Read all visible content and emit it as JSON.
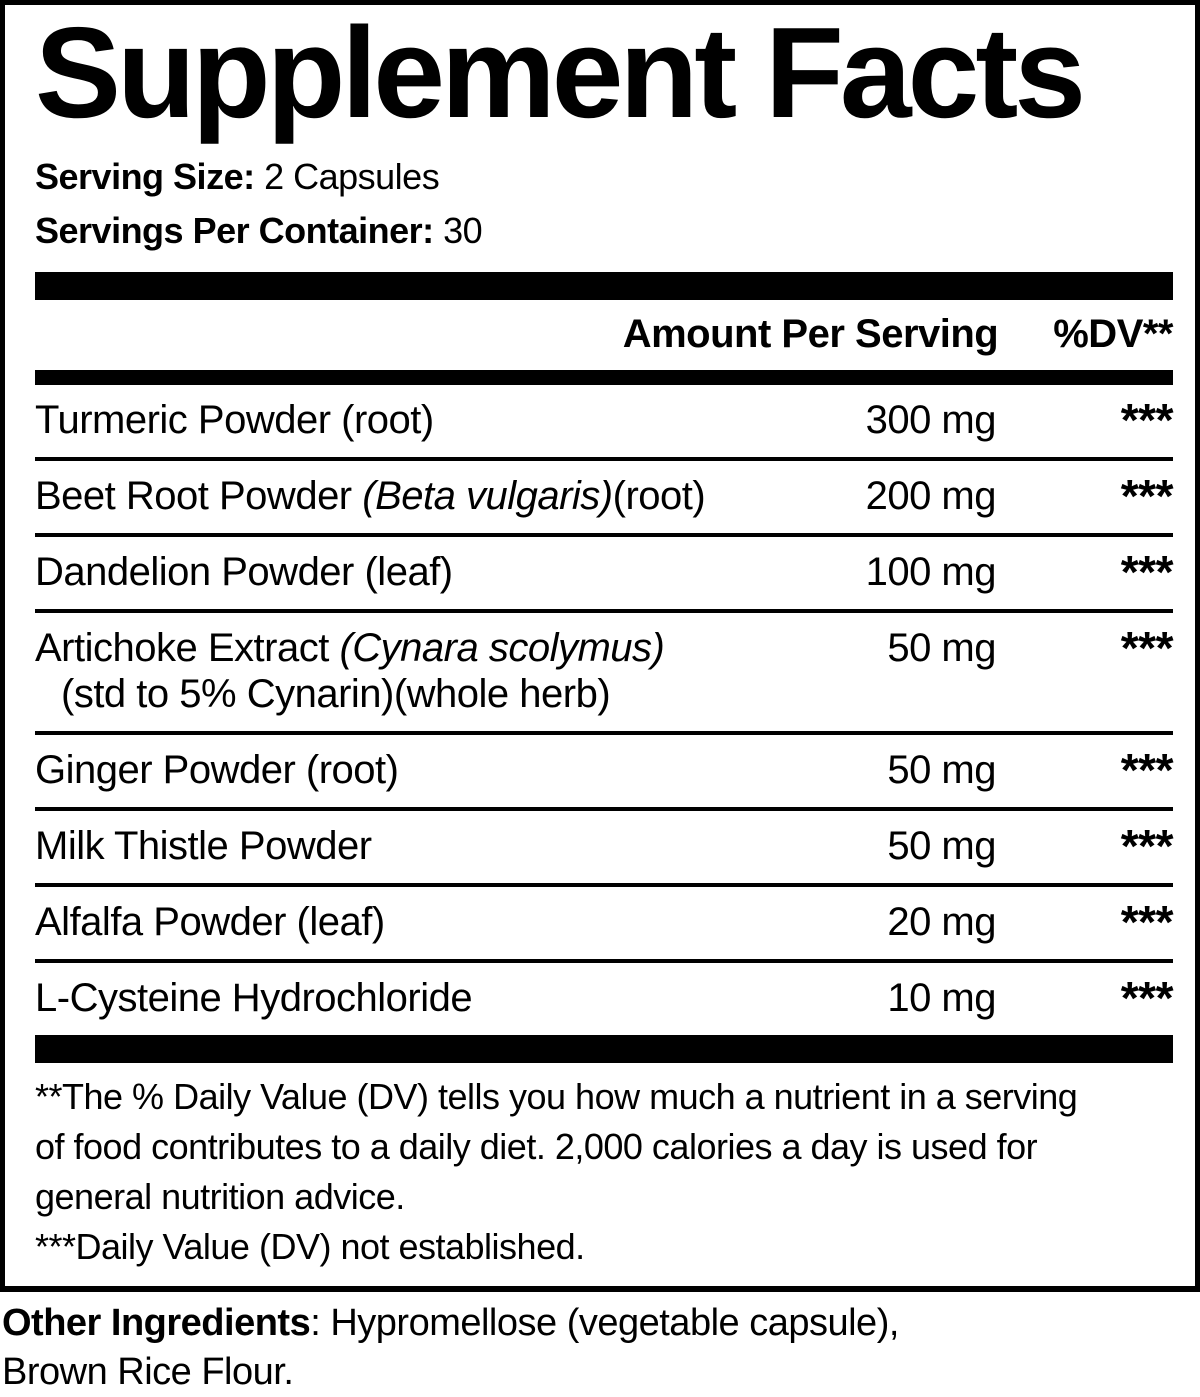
{
  "title": "Supplement Facts",
  "serving_info": {
    "serving_size_label": "Serving Size:",
    "serving_size_value": "2 Capsules",
    "servings_per_container_label": "Servings Per Container:",
    "servings_per_container_value": "30"
  },
  "table": {
    "header": {
      "amount_label": "Amount Per Serving",
      "dv_label": "%DV**"
    },
    "rows": [
      {
        "pre": "Turmeric Powder (root)",
        "italic": "",
        "post": "",
        "line2": "",
        "amount": "300 mg",
        "dv": "***"
      },
      {
        "pre": "Beet Root Powder ",
        "italic": "(Beta vulgaris)",
        "post": "(root)",
        "line2": "",
        "amount": "200 mg",
        "dv": "***"
      },
      {
        "pre": "Dandelion Powder (leaf)",
        "italic": "",
        "post": "",
        "line2": "",
        "amount": "100 mg",
        "dv": "***"
      },
      {
        "pre": "Artichoke Extract ",
        "italic": "(Cynara scolymus)",
        "post": "",
        "line2": "(std to 5% Cynarin)(whole herb)",
        "amount": "50 mg",
        "dv": "***"
      },
      {
        "pre": "Ginger Powder (root)",
        "italic": "",
        "post": "",
        "line2": "",
        "amount": "50 mg",
        "dv": "***"
      },
      {
        "pre": "Milk Thistle Powder",
        "italic": "",
        "post": "",
        "line2": "",
        "amount": "50 mg",
        "dv": "***"
      },
      {
        "pre": "Alfalfa Powder (leaf)",
        "italic": "",
        "post": "",
        "line2": "",
        "amount": "20 mg",
        "dv": "***"
      },
      {
        "pre": "L-Cysteine Hydrochloride",
        "italic": "",
        "post": "",
        "line2": "",
        "amount": "10 mg",
        "dv": "***"
      }
    ]
  },
  "footnotes": {
    "dv_line1": "**The % Daily Value (DV) tells you how much a nutrient in a serving",
    "dv_line2": "of food contributes to a daily diet. 2,000 calories a day is used for",
    "dv_line3": "general nutrition advice.",
    "not_established": "***Daily Value (DV) not established."
  },
  "other_ingredients": {
    "label": "Other Ingredients",
    "line1_rest": ": Hypromellose (vegetable capsule),",
    "line2": "Brown Rice Flour."
  },
  "colors": {
    "text": "#000000",
    "background": "#ffffff"
  }
}
